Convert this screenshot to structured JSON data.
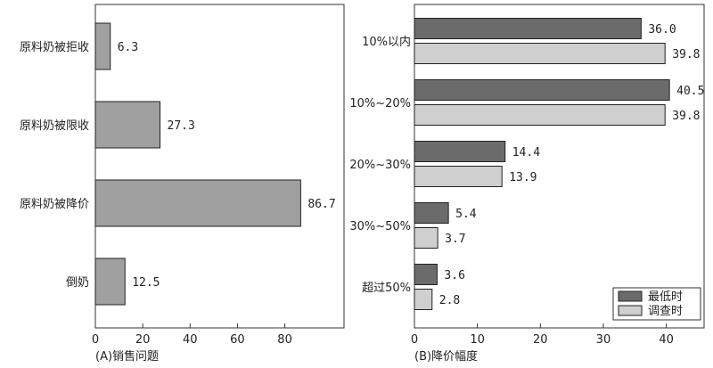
{
  "chart_data": [
    {
      "type": "bar",
      "orientation": "horizontal",
      "caption": "(A)销售问题",
      "categories": [
        "原料奶被拒收",
        "原料奶被限收",
        "原料奶被降价",
        "倒奶"
      ],
      "values": [
        6.3,
        27.3,
        86.7,
        12.5
      ],
      "value_labels": [
        "6.3",
        "27.3",
        "86.7",
        "12.5"
      ],
      "xlim": [
        0,
        105
      ],
      "xticks": [
        0,
        20,
        40,
        60,
        80
      ],
      "bar_color": "#a0a0a0"
    },
    {
      "type": "bar",
      "orientation": "horizontal",
      "caption": "(B)降价幅度",
      "categories": [
        "10%以内",
        "10%~20%",
        "20%~30%",
        "30%~50%",
        "超过50%"
      ],
      "series": [
        {
          "name": "最低时",
          "values": [
            36.0,
            40.5,
            14.4,
            5.4,
            3.6
          ],
          "value_labels": [
            "36.0",
            "40.5",
            "14.4",
            "5.4",
            "3.6"
          ],
          "color": "#6b6b6b"
        },
        {
          "name": "调查时",
          "values": [
            39.8,
            39.8,
            13.9,
            3.7,
            2.8
          ],
          "value_labels": [
            "39.8",
            "39.8",
            "13.9",
            "3.7",
            "2.8"
          ],
          "color": "#cfcfcf"
        }
      ],
      "xlim": [
        0,
        46
      ],
      "xticks": [
        0,
        10,
        20,
        30,
        40
      ],
      "legend": "bottom-right"
    }
  ]
}
